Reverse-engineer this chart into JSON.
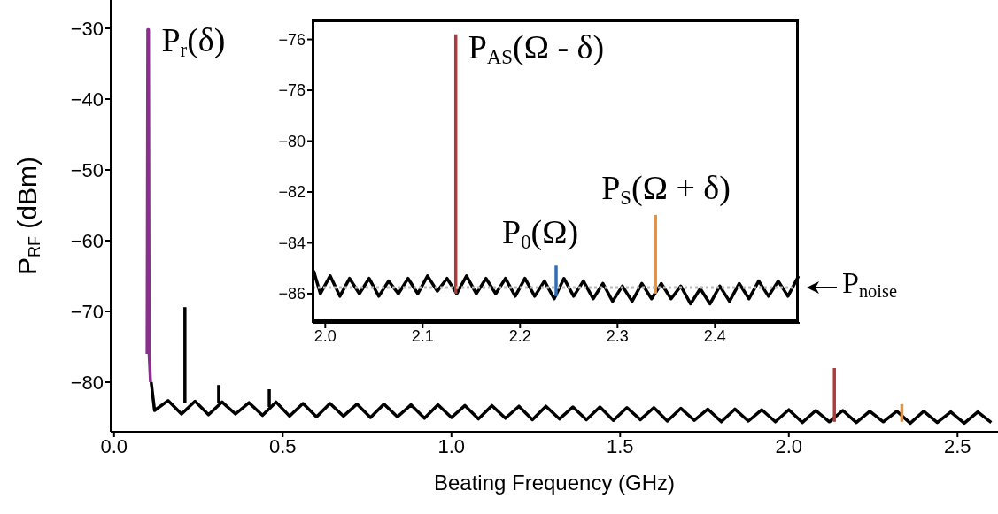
{
  "chart_data": [
    {
      "type": "line",
      "xlabel": "Beating Frequency (GHz)",
      "ylabel": "P$_{RF}$ (dBm)",
      "xlim": [
        -0.01,
        2.62
      ],
      "ylim": [
        -87,
        -26
      ],
      "xticks": [
        {
          "value": 0,
          "label": "0.0"
        },
        0.5,
        {
          "value": 1,
          "label": "1.0"
        },
        1.5,
        {
          "value": 2,
          "label": "2.0"
        },
        2.5
      ],
      "yticks": [
        {
          "value": -80,
          "label": "−80"
        },
        {
          "value": -70,
          "label": "−70"
        },
        {
          "value": -60,
          "label": "−60"
        },
        {
          "value": -50,
          "label": "−50"
        },
        {
          "value": -40,
          "label": "−40"
        },
        {
          "value": -30,
          "label": "−30"
        }
      ],
      "series": [
        {
          "color": "#000000",
          "x": [
            0.11,
            0.12,
            0.16,
            0.2,
            0.24,
            0.28,
            0.32,
            0.36,
            0.4,
            0.44,
            0.48,
            0.52,
            0.56,
            0.6,
            0.64,
            0.68,
            0.72,
            0.76,
            0.8,
            0.84,
            0.88,
            0.92,
            0.96,
            1.0,
            1.04,
            1.08,
            1.12,
            1.16,
            1.2,
            1.24,
            1.28,
            1.32,
            1.36,
            1.4,
            1.44,
            1.48,
            1.52,
            1.56,
            1.6,
            1.64,
            1.68,
            1.72,
            1.76,
            1.8,
            1.84,
            1.88,
            1.92,
            1.96,
            2.0,
            2.04,
            2.08,
            2.12,
            2.16,
            2.2,
            2.24,
            2.28,
            2.32,
            2.36,
            2.4,
            2.44,
            2.48,
            2.52,
            2.56,
            2.6
          ],
          "values": [
            -80,
            -84.0,
            -82.6,
            -84.5,
            -82.7,
            -84.6,
            -82.8,
            -84.5,
            -82.9,
            -84.7,
            -82.8,
            -84.8,
            -83.0,
            -84.9,
            -83.0,
            -84.8,
            -83.1,
            -85.0,
            -83.1,
            -84.9,
            -83.2,
            -85.1,
            -83.2,
            -85.0,
            -83.3,
            -85.2,
            -83.3,
            -85.1,
            -83.4,
            -85.3,
            -83.4,
            -85.2,
            -83.5,
            -85.3,
            -83.5,
            -85.4,
            -83.6,
            -85.3,
            -83.6,
            -85.5,
            -83.7,
            -85.4,
            -83.8,
            -85.6,
            -83.8,
            -85.5,
            -83.9,
            -85.6,
            -83.9,
            -85.7,
            -84.0,
            -85.6,
            -84.0,
            -85.7,
            -84.1,
            -85.6,
            -84.1,
            -85.8,
            -84.1,
            -85.7,
            -84.2,
            -85.8,
            -84.2,
            -85.7
          ]
        },
        {
          "color": "#000000",
          "x": [
            0.21,
            0.21
          ],
          "values": [
            -83,
            -69.4
          ]
        },
        {
          "color": "#000000",
          "x": [
            0.31,
            0.31
          ],
          "values": [
            -83,
            -80.4
          ]
        },
        {
          "color": "#000000",
          "x": [
            0.46,
            0.46
          ],
          "values": [
            -83.5,
            -81
          ]
        },
        {
          "color": "#8b2f8f",
          "x": [
            0.098,
            0.1,
            0.102,
            0.104,
            0.108
          ],
          "values": [
            -76,
            -30.2,
            -30.2,
            -76,
            -80
          ]
        },
        {
          "color": "#b03a3a",
          "x": [
            2.135,
            2.135
          ],
          "values": [
            -85.6,
            -78
          ]
        },
        {
          "color": "#e8913a",
          "x": [
            2.335,
            2.335
          ],
          "values": [
            -85.6,
            -83.1
          ]
        }
      ],
      "annotations": [
        {
          "text": "P$_{r}$(δ)",
          "x": 0.104,
          "y": -30.2
        }
      ]
    },
    {
      "type": "line",
      "xlim": [
        1.987,
        2.487
      ],
      "ylim": [
        -87.15,
        -75.25
      ],
      "xticks": [
        {
          "value": 2,
          "label": "2.0"
        },
        2.1,
        2.2,
        2.3,
        2.4
      ],
      "yticks": [
        {
          "value": -86,
          "label": "−86"
        },
        {
          "value": -84,
          "label": "−84"
        },
        {
          "value": -82,
          "label": "−82"
        },
        {
          "value": -80,
          "label": "−80"
        },
        {
          "value": -78,
          "label": "−78"
        },
        {
          "value": -76,
          "label": "−76"
        }
      ],
      "series": [
        {
          "color": "#000000",
          "x": [
            1.988,
            1.995,
            2.005,
            2.015,
            2.025,
            2.035,
            2.045,
            2.055,
            2.065,
            2.075,
            2.085,
            2.095,
            2.105,
            2.115,
            2.125,
            2.135,
            2.145,
            2.155,
            2.165,
            2.175,
            2.185,
            2.195,
            2.205,
            2.215,
            2.225,
            2.235,
            2.245,
            2.255,
            2.265,
            2.275,
            2.285,
            2.295,
            2.305,
            2.315,
            2.325,
            2.335,
            2.345,
            2.355,
            2.365,
            2.375,
            2.385,
            2.395,
            2.405,
            2.415,
            2.425,
            2.435,
            2.445,
            2.455,
            2.465,
            2.475,
            2.486
          ],
          "values": [
            -85.1,
            -86.0,
            -85.3,
            -86.1,
            -85.4,
            -86.0,
            -85.4,
            -86.1,
            -85.5,
            -86.0,
            -85.4,
            -86.0,
            -85.3,
            -85.9,
            -85.4,
            -86.0,
            -85.3,
            -86.0,
            -85.4,
            -86.0,
            -85.4,
            -86.1,
            -85.4,
            -86.1,
            -85.5,
            -86.2,
            -85.4,
            -86.1,
            -85.5,
            -86.2,
            -85.6,
            -86.3,
            -85.7,
            -86.3,
            -85.6,
            -86.2,
            -85.6,
            -86.2,
            -85.7,
            -86.4,
            -85.8,
            -86.4,
            -85.7,
            -86.3,
            -85.6,
            -86.2,
            -85.5,
            -86.1,
            -85.5,
            -86.1,
            -85.3
          ]
        },
        {
          "color": "#b03a3a",
          "x": [
            2.134,
            2.134
          ],
          "values": [
            -86.0,
            -75.8
          ]
        },
        {
          "color": "#2f6db5",
          "x": [
            2.237,
            2.237
          ],
          "values": [
            -86.1,
            -84.9
          ]
        },
        {
          "color": "#e8913a",
          "x": [
            2.339,
            2.339
          ],
          "values": [
            -86.0,
            -82.9
          ]
        }
      ],
      "ref_lines": [
        {
          "axis": "y",
          "value": -85.76,
          "label": "P$_{noise}$",
          "color": "#bbbbbb",
          "line_style": "dotted"
        }
      ],
      "annotations": [
        {
          "text": "P$_{AS}$(Ω - δ)",
          "x": 2.134,
          "y": -75.8
        },
        {
          "text": "P$_{0}$(Ω)",
          "x": 2.237,
          "y": -84.9
        },
        {
          "text": "P$_{S}$(Ω + δ)",
          "x": 2.339,
          "y": -82.9
        }
      ]
    }
  ]
}
